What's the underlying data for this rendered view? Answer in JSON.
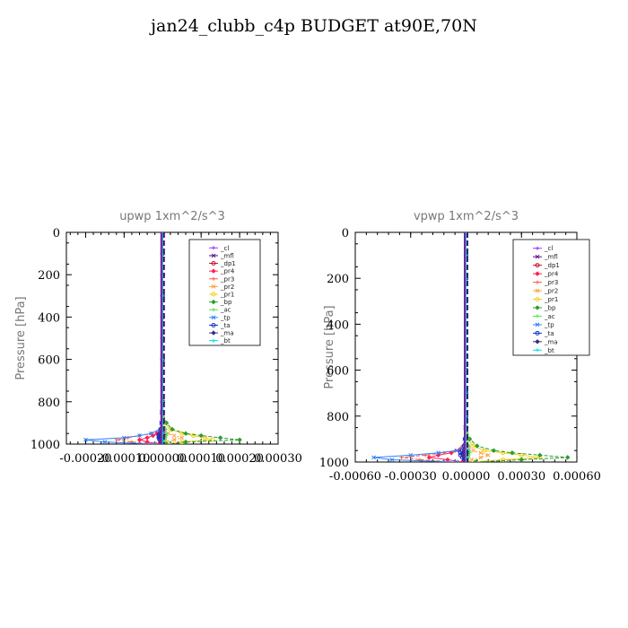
{
  "title": "jan24_clubb_c4p  BUDGET at90E,70N",
  "legend_labels": [
    "_cl",
    "_mfl",
    "_dp1",
    "_pr4",
    "_pr3",
    "_pr2",
    "_pr1",
    "_bp",
    "_ac",
    "_tp",
    "_ta",
    "_ma",
    "_bt"
  ],
  "series_colors": [
    "#9b30ff",
    "#5a0f8a",
    "#c8102e",
    "#ff2050",
    "#ff5a40",
    "#ffa040",
    "#f0d020",
    "#2a9d2a",
    "#50e050",
    "#3080ff",
    "#1030d0",
    "#303080",
    "#00e0e0"
  ],
  "chart_data": [
    {
      "type": "line",
      "title": "upwp   1xm^2/s^3",
      "ylabel": "Pressure [hPa]",
      "xlim": [
        -0.00025,
        0.0003
      ],
      "ylim": [
        1000,
        0
      ],
      "xticks": [
        -0.0002,
        -0.0001,
        0.0,
        0.0001,
        0.0002,
        0.0003
      ],
      "xtick_labels": [
        "-0.00020",
        "-0.00010",
        "0.00000",
        "0.00010",
        "0.00020",
        "0.00030"
      ],
      "yticks": [
        0,
        200,
        400,
        600,
        800,
        1000
      ],
      "ytick_labels": [
        "0",
        "200",
        "400",
        "600",
        "800",
        "1000"
      ],
      "grid": false,
      "legend": "top-right",
      "y": [
        0,
        100,
        200,
        300,
        400,
        500,
        600,
        700,
        800,
        850,
        900,
        930,
        950,
        960,
        970,
        980,
        990,
        1000
      ],
      "series": [
        {
          "name": "_cl",
          "values": [
            0,
            0,
            0,
            0,
            0,
            0,
            0,
            0,
            0,
            0,
            0,
            0,
            0,
            0,
            0,
            0,
            0,
            0
          ]
        },
        {
          "name": "_mfl",
          "values": [
            0,
            0,
            0,
            0,
            0,
            0,
            0,
            0,
            0,
            0,
            0,
            0,
            3e-06,
            5e-06,
            5e-06,
            3e-06,
            2e-06,
            0
          ]
        },
        {
          "name": "_dp1",
          "values": [
            0,
            0,
            0,
            0,
            0,
            0,
            0,
            0,
            0,
            0,
            0,
            -3e-06,
            -6e-06,
            -8e-06,
            -8e-06,
            -5e-06,
            -2e-06,
            0
          ]
        },
        {
          "name": "_pr4",
          "values": [
            0,
            0,
            0,
            0,
            0,
            0,
            0,
            0,
            0,
            0,
            -2e-06,
            -6e-06,
            -1.5e-05,
            -2.5e-05,
            -4e-05,
            -6e-05,
            -4e-05,
            -1e-05
          ]
        },
        {
          "name": "_pr3",
          "values": [
            0,
            0,
            0,
            0,
            0,
            0,
            0,
            0,
            0,
            0,
            -2e-06,
            -8e-06,
            -3e-05,
            -6e-05,
            -9e-05,
            -0.00012,
            -8e-05,
            -2e-05
          ]
        },
        {
          "name": "_pr2",
          "values": [
            0,
            0,
            0,
            0,
            0,
            0,
            0,
            0,
            0,
            0,
            2e-06,
            6e-06,
            1.5e-05,
            3e-05,
            5e-05,
            3e-05,
            1e-05,
            0
          ]
        },
        {
          "name": "_pr1",
          "values": [
            0,
            0,
            0,
            0,
            0,
            0,
            0,
            0,
            0,
            0,
            5e-06,
            2e-05,
            5e-05,
            8e-05,
            0.00011,
            0.00013,
            5e-05,
            1e-05
          ]
        },
        {
          "name": "_bp",
          "values": [
            0,
            0,
            0,
            0,
            0,
            0,
            0,
            0,
            0,
            0,
            1e-05,
            2.5e-05,
            6e-05,
            0.0001,
            0.00015,
            0.0002,
            6e-05,
            1e-05
          ]
        },
        {
          "name": "_ac",
          "values": [
            0,
            0,
            0,
            0,
            0,
            0,
            0,
            0,
            0,
            2e-06,
            5e-06,
            8e-06,
            1e-05,
            1e-05,
            8e-06,
            6e-06,
            3e-06,
            0
          ]
        },
        {
          "name": "_tp",
          "values": [
            0,
            0,
            0,
            0,
            0,
            0,
            0,
            0,
            0,
            -3e-06,
            -4e-06,
            -6e-06,
            -3e-05,
            -6e-05,
            -0.0001,
            -0.0002,
            -0.00015,
            -2e-05
          ]
        },
        {
          "name": "_ta",
          "values": [
            0,
            0,
            0,
            0,
            0,
            0,
            0,
            0,
            0,
            0,
            -2e-06,
            -4e-06,
            -8e-06,
            -1e-05,
            -1e-05,
            -8e-06,
            -4e-06,
            0
          ]
        },
        {
          "name": "_ma",
          "values": [
            0,
            0,
            0,
            0,
            0,
            0,
            0,
            0,
            0,
            0,
            0,
            0,
            -2e-06,
            -3e-06,
            -3e-06,
            -2e-06,
            -1e-06,
            0
          ]
        },
        {
          "name": "_bt",
          "values": [
            0,
            0,
            0,
            0,
            0,
            0,
            0,
            0,
            0,
            0,
            0,
            0,
            0,
            0,
            0,
            0,
            0,
            0
          ]
        }
      ]
    },
    {
      "type": "line",
      "title": "vpwp   1xm^2/s^3",
      "ylabel": "Pressure [hPa]",
      "xlim": [
        -0.0006,
        0.0006
      ],
      "ylim": [
        1000,
        0
      ],
      "xticks": [
        -0.0006,
        -0.0003,
        0.0,
        0.0003,
        0.0006
      ],
      "xtick_labels": [
        "-0.00060",
        "-0.00030",
        "0.00000",
        "0.00030",
        "0.00060"
      ],
      "yticks": [
        0,
        200,
        400,
        600,
        800,
        1000
      ],
      "ytick_labels": [
        "0",
        "200",
        "400",
        "600",
        "800",
        "1000"
      ],
      "grid": false,
      "legend": "top-right",
      "y": [
        0,
        100,
        200,
        300,
        400,
        500,
        600,
        700,
        800,
        850,
        900,
        930,
        950,
        960,
        970,
        980,
        990,
        1000
      ],
      "series": [
        {
          "name": "_cl",
          "values": [
            0,
            0,
            0,
            0,
            0,
            0,
            0,
            0,
            0,
            0,
            0,
            0,
            0,
            0,
            0,
            0,
            0,
            0
          ]
        },
        {
          "name": "_mfl",
          "values": [
            0,
            0,
            0,
            0,
            0,
            0,
            0,
            0,
            0,
            0,
            0,
            0,
            5e-06,
            1e-05,
            1e-05,
            6e-06,
            3e-06,
            0
          ]
        },
        {
          "name": "_dp1",
          "values": [
            0,
            0,
            0,
            0,
            0,
            0,
            0,
            0,
            0,
            0,
            0,
            -5e-06,
            -1e-05,
            -1.5e-05,
            -1.5e-05,
            -1e-05,
            -5e-06,
            0
          ]
        },
        {
          "name": "_pr4",
          "values": [
            0,
            0,
            0,
            0,
            0,
            0,
            0,
            0,
            0,
            0,
            -5e-06,
            -1.5e-05,
            -4e-05,
            -8e-05,
            -0.00015,
            -0.0002,
            -0.0001,
            -2e-05
          ]
        },
        {
          "name": "_pr3",
          "values": [
            0,
            0,
            0,
            0,
            0,
            0,
            0,
            0,
            0,
            0,
            -5e-06,
            -2e-05,
            -6e-05,
            -0.00012,
            -0.00022,
            -0.00035,
            -0.00025,
            -5e-05
          ]
        },
        {
          "name": "_pr2",
          "values": [
            0,
            0,
            0,
            0,
            0,
            0,
            0,
            0,
            0,
            0,
            5e-06,
            1.5e-05,
            4e-05,
            8e-05,
            0.00012,
            8e-05,
            3e-05,
            0
          ]
        },
        {
          "name": "_pr1",
          "values": [
            0,
            0,
            0,
            0,
            0,
            0,
            0,
            0,
            0,
            0,
            1e-05,
            4e-05,
            0.0001,
            0.0002,
            0.0003,
            0.0004,
            0.0002,
            3e-05
          ]
        },
        {
          "name": "_bp",
          "values": [
            0,
            0,
            0,
            0,
            0,
            0,
            0,
            0,
            0,
            0,
            2e-05,
            6e-05,
            0.00015,
            0.00025,
            0.0004,
            0.00055,
            0.0003,
            5e-05
          ]
        },
        {
          "name": "_ac",
          "values": [
            0,
            0,
            0,
            0,
            0,
            0,
            0,
            0,
            0,
            5e-06,
            1e-05,
            1.5e-05,
            2e-05,
            2e-05,
            1.5e-05,
            1e-05,
            5e-06,
            0
          ]
        },
        {
          "name": "_tp",
          "values": [
            0,
            0,
            0,
            0,
            0,
            0,
            0,
            0,
            0,
            -5e-06,
            -8e-06,
            -1e-05,
            -5e-05,
            -0.00015,
            -0.0003,
            -0.0005,
            -0.0004,
            -5e-05
          ]
        },
        {
          "name": "_ta",
          "values": [
            0,
            0,
            0,
            0,
            0,
            0,
            0,
            0,
            0,
            0,
            -5e-06,
            -1e-05,
            -2e-05,
            -3e-05,
            -3e-05,
            -2e-05,
            -1e-05,
            0
          ]
        },
        {
          "name": "_ma",
          "values": [
            0,
            0,
            0,
            0,
            0,
            0,
            0,
            0,
            0,
            0,
            0,
            0,
            -5e-06,
            -8e-06,
            -8e-06,
            -5e-06,
            -3e-06,
            0
          ]
        },
        {
          "name": "_bt",
          "values": [
            0,
            0,
            0,
            0,
            0,
            0,
            0,
            0,
            0,
            0,
            0,
            0,
            0,
            0,
            0,
            0,
            0,
            0
          ]
        }
      ]
    }
  ]
}
